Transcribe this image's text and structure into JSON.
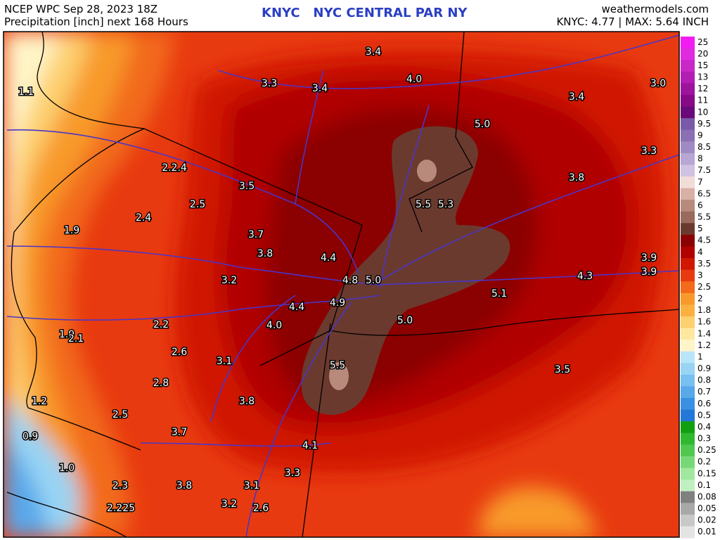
{
  "header": {
    "left": [
      "NCEP WPC Sep 28, 2023 18Z",
      "Precipitation [inch] next 168 Hours"
    ],
    "center": "KNYC   NYC CENTRAL PAR NY",
    "right": [
      "weathermodels.com",
      "KNYC: 4.77 | MAX: 5.64 INCH"
    ]
  },
  "map_labels": [
    "3.4",
    "3.3",
    "3.4",
    "4.0",
    "3.4",
    "3.0",
    "1.1",
    "5.0",
    "3.3",
    "2.2.4",
    "3.5",
    "3.8",
    "2.5",
    "2.4",
    "5.5",
    "5.3",
    "1.9",
    "3.7",
    "3.8",
    "4.4",
    "3.9",
    "3.9",
    "3.2",
    "4.8",
    "5.0",
    "4.3",
    "5.1",
    "4.4",
    "4.9",
    "5.0",
    "4.0",
    "2.2",
    "1.9",
    "2.1",
    "2.6",
    "3.1",
    "5.5",
    "3.5",
    "2.8",
    "1.2",
    "3.8",
    "2.5",
    "0.9",
    "3.7",
    "4.1",
    "1.0",
    "3.3",
    "2.3",
    "3.8",
    "3.1",
    "3.2",
    "2.6",
    "2.225"
  ],
  "legend": {
    "labels": [
      "25",
      "20",
      "15",
      "13",
      "12",
      "11",
      "10",
      "9.5",
      "9",
      "8.5",
      "8",
      "7.5",
      "7",
      "6.5",
      "6",
      "5.5",
      "5",
      "4.5",
      "4",
      "3.5",
      "3",
      "2.5",
      "2",
      "1.8",
      "1.6",
      "1.4",
      "1.2",
      "1",
      "0.9",
      "0.8",
      "0.7",
      "0.6",
      "0.5",
      "0.4",
      "0.3",
      "0.25",
      "0.2",
      "0.15",
      "0.1",
      "0.08",
      "0.05",
      "0.02",
      "0.01"
    ],
    "colors": [
      "#f21cf2",
      "#e02ae0",
      "#c828c8",
      "#b21eb2",
      "#9c149c",
      "#860a86",
      "#6a0a78",
      "#7a5aa8",
      "#8c70b4",
      "#a08ac4",
      "#b8a6d4",
      "#d0c2e2",
      "#f2dcd8",
      "#d8b0a6",
      "#b88a7c",
      "#9a6a5c",
      "#6b3a2e",
      "#8b0000",
      "#b00000",
      "#d01800",
      "#e83a10",
      "#f26a1a",
      "#f89a2a",
      "#fbb040",
      "#fdd070",
      "#fee8a0",
      "#fff5c8",
      "#b8e6f8",
      "#98d4f4",
      "#78c0f0",
      "#58a8ea",
      "#3a90e2",
      "#2478d8",
      "#10a010",
      "#30b830",
      "#50c850",
      "#78d878",
      "#a0e8a0",
      "#c0f0c0",
      "#808080",
      "#a8a8a8",
      "#c8c8c8",
      "#e4e4e4"
    ]
  }
}
